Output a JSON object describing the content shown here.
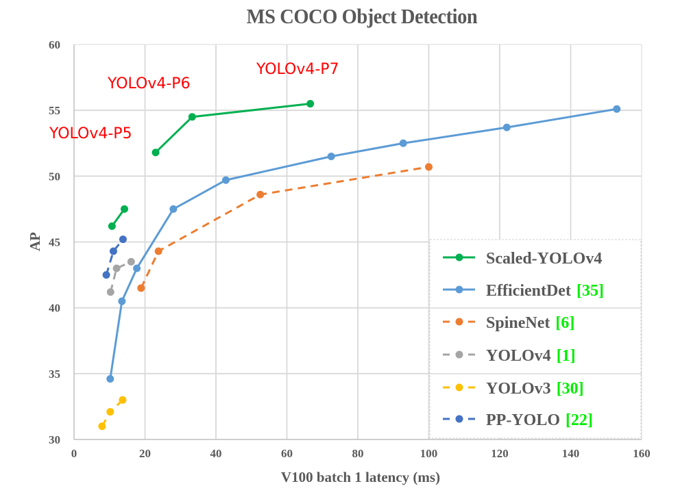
{
  "chart_data": {
    "type": "line",
    "title": "MS COCO Object Detection",
    "xlabel": "V100 batch 1 latency (ms)",
    "ylabel": "AP",
    "xlim": [
      0,
      160
    ],
    "ylim": [
      30,
      60
    ],
    "xticks": [
      0,
      20,
      40,
      60,
      80,
      100,
      120,
      140,
      160
    ],
    "yticks": [
      30,
      35,
      40,
      45,
      50,
      55,
      60
    ],
    "grid": true,
    "legend_position": "bottom-right",
    "series": [
      {
        "name": "Scaled-YOLOv4",
        "ref": "",
        "color": "#00b050",
        "dashed": false,
        "segments": [
          [
            [
              10.7,
              46.2
            ],
            [
              14.2,
              47.5
            ]
          ],
          [
            [
              23.0,
              51.8
            ],
            [
              33.3,
              54.5
            ],
            [
              66.6,
              55.5
            ]
          ]
        ]
      },
      {
        "name": "EfficientDet",
        "ref": "[35]",
        "color": "#5b9bd5",
        "dashed": false,
        "segments": [
          [
            [
              10.2,
              34.6
            ],
            [
              13.5,
              40.5
            ],
            [
              17.7,
              43.0
            ],
            [
              28.0,
              47.5
            ],
            [
              42.8,
              49.7
            ],
            [
              72.5,
              51.5
            ],
            [
              92.8,
              52.5
            ],
            [
              122.0,
              53.7
            ],
            [
              153.0,
              55.1
            ]
          ]
        ]
      },
      {
        "name": "SpineNet",
        "ref": "[6]",
        "color": "#ed7d31",
        "dashed": true,
        "segments": [
          [
            [
              18.9,
              41.5
            ],
            [
              23.8,
              44.3
            ],
            [
              52.5,
              48.6
            ],
            [
              100.0,
              50.7
            ]
          ]
        ]
      },
      {
        "name": "YOLOv4",
        "ref": "[1]",
        "color": "#a5a5a5",
        "dashed": true,
        "segments": [
          [
            [
              10.3,
              41.2
            ],
            [
              12.0,
              43.0
            ],
            [
              16.1,
              43.5
            ]
          ]
        ]
      },
      {
        "name": "YOLOv3",
        "ref": "[30]",
        "color": "#ffc000",
        "dashed": true,
        "segments": [
          [
            [
              7.9,
              31.0
            ],
            [
              10.2,
              32.1
            ],
            [
              13.7,
              33.0
            ]
          ]
        ]
      },
      {
        "name": "PP-YOLO",
        "ref": "[22]",
        "color": "#4472c4",
        "dashed": true,
        "segments": [
          [
            [
              9.1,
              42.5
            ],
            [
              11.1,
              44.3
            ],
            [
              13.8,
              45.2
            ]
          ]
        ]
      }
    ],
    "annotations": [
      {
        "text": "YOLOv4-P5",
        "color": "#ff0000"
      },
      {
        "text": "YOLOv4-P6",
        "color": "#ff0000"
      },
      {
        "text": "YOLOv4-P7",
        "color": "#ff0000"
      }
    ]
  }
}
